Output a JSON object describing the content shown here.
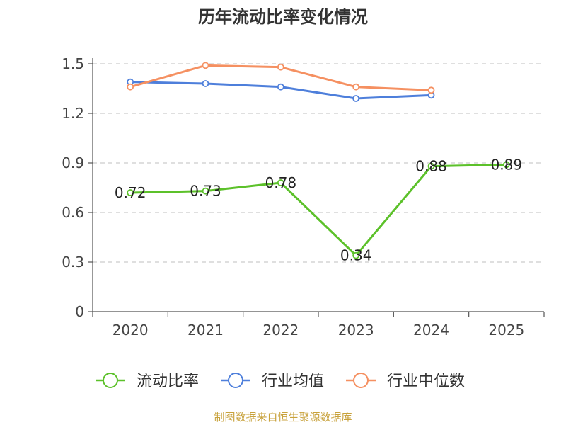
{
  "chart_data": {
    "type": "line",
    "title": "历年流动比率变化情况",
    "xlabel": "",
    "ylabel": "",
    "categories": [
      "2020",
      "2021",
      "2022",
      "2023",
      "2024",
      "2025"
    ],
    "ylim": [
      0,
      1.5
    ],
    "yticks": [
      "0",
      "0.3",
      "0.6",
      "0.9",
      "1.2",
      "1.5"
    ],
    "ytick_values": [
      0,
      0.3,
      0.6,
      0.9,
      1.2,
      1.5
    ],
    "grid": true,
    "legend_position": "bottom",
    "series": [
      {
        "name": "流动比率",
        "color": "#5cc12a",
        "values": [
          0.72,
          0.73,
          0.78,
          0.34,
          0.88,
          0.89
        ],
        "labels": [
          "0.72",
          "0.73",
          "0.78",
          "0.34",
          "0.88",
          "0.89"
        ]
      },
      {
        "name": "行业均值",
        "color": "#4e7fdb",
        "values": [
          1.39,
          1.38,
          1.36,
          1.29,
          1.31,
          null
        ]
      },
      {
        "name": "行业中位数",
        "color": "#f59061",
        "values": [
          1.36,
          1.49,
          1.48,
          1.36,
          1.34,
          null
        ]
      }
    ],
    "source": "制图数据来自恒生聚源数据库"
  }
}
